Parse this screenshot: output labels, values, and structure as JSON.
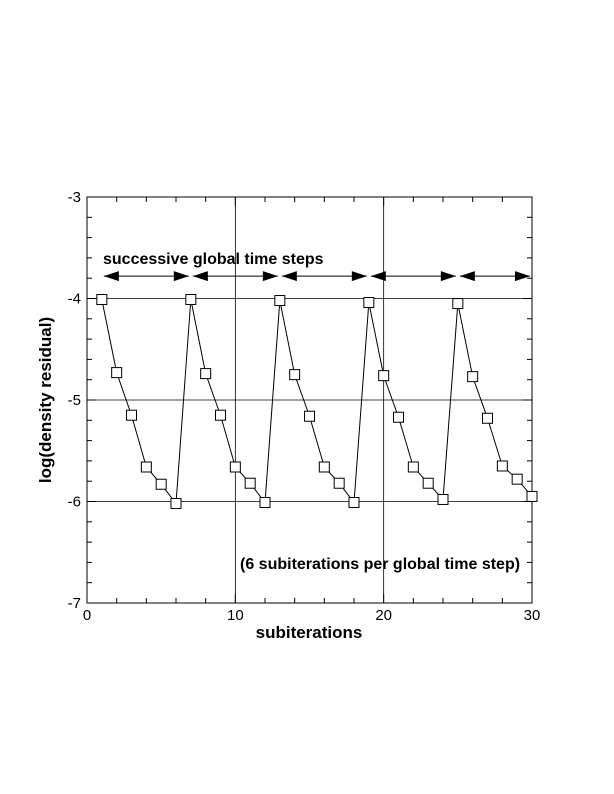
{
  "chart_data": {
    "type": "line",
    "title": "",
    "xlabel": "subiterations",
    "ylabel": "log(density residual)",
    "xlim": [
      0,
      30
    ],
    "ylim": [
      -7,
      -3
    ],
    "grid": true,
    "x_ticks": [
      0,
      10,
      20,
      30
    ],
    "y_ticks": [
      -7,
      -6,
      -5,
      -4,
      -3
    ],
    "x_tick_labels": [
      "0",
      "10",
      "20",
      "30"
    ],
    "y_tick_labels": [
      "-7",
      "-6",
      "-5",
      "-4",
      "-3"
    ],
    "x_minor_step": 2,
    "y_minor_step": 0.2,
    "marker": "square",
    "series": [
      {
        "x": [
          1,
          2,
          3,
          4,
          5,
          6,
          7,
          8,
          9,
          10,
          11,
          12,
          13,
          14,
          15,
          16,
          17,
          18,
          19,
          20,
          21,
          22,
          23,
          24,
          25,
          26,
          27,
          28,
          29,
          30
        ],
        "values": [
          -4.01,
          -4.73,
          -5.15,
          -5.66,
          -5.83,
          -6.02,
          -4.01,
          -4.74,
          -5.15,
          -5.66,
          -5.82,
          -6.01,
          -4.02,
          -4.75,
          -5.16,
          -5.66,
          -5.82,
          -6.01,
          -4.04,
          -4.76,
          -5.17,
          -5.66,
          -5.82,
          -5.98,
          -4.05,
          -4.77,
          -5.18,
          -5.65,
          -5.78,
          -5.95
        ]
      }
    ],
    "annotations": {
      "timesteps_label": "successive global time steps",
      "subiter_note": "(6 subiterations per global time step)"
    },
    "timestep_arrows": [
      [
        1,
        7
      ],
      [
        7,
        13
      ],
      [
        13,
        19
      ],
      [
        19,
        25
      ],
      [
        25,
        30
      ]
    ],
    "arrow_y": -3.78
  }
}
